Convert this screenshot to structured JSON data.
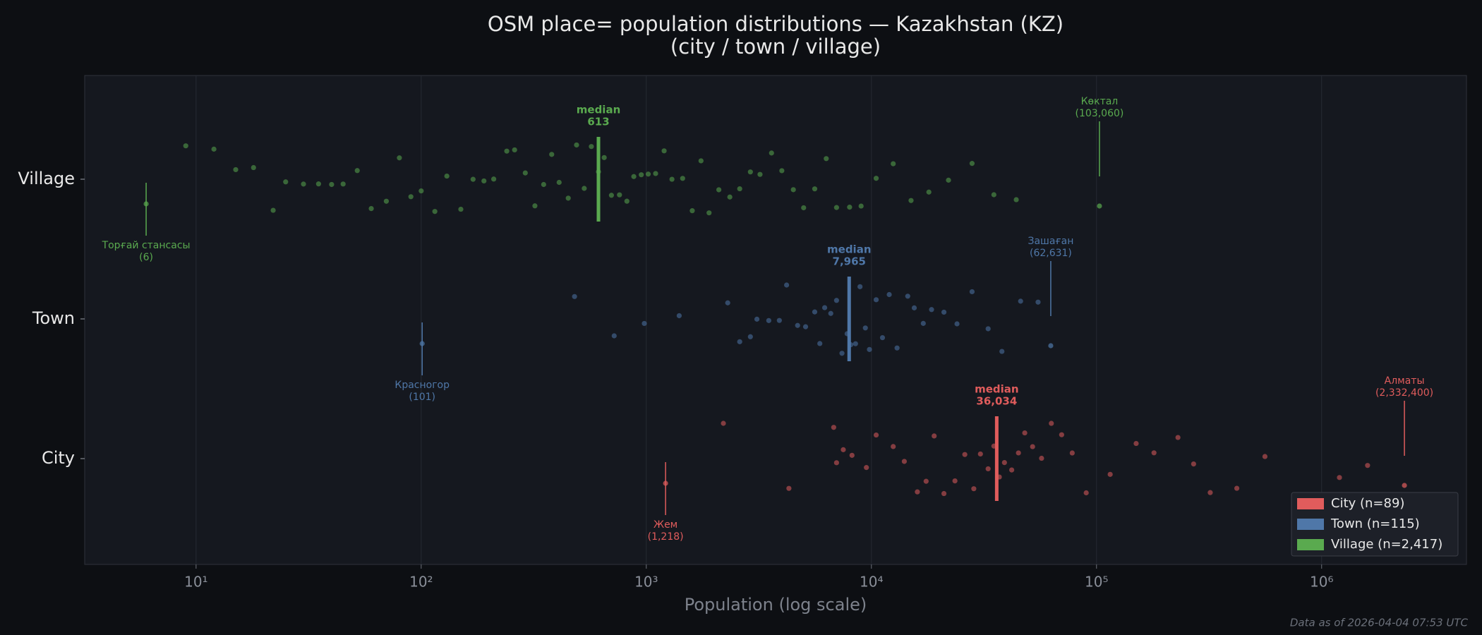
{
  "chart_data": {
    "type": "strip",
    "title": "OSM place= population distributions — Kazakhstan (KZ)",
    "subtitle": "(city / town / village)",
    "xlabel": "Population (log scale)",
    "footer": "Data as of 2026-04-04 07:53 UTC",
    "log_x": true,
    "grid": true,
    "legend": "lower right",
    "categories": [
      "Village",
      "Town",
      "City"
    ],
    "xlim": [
      3.2,
      4400000
    ],
    "xticks": [
      {
        "value": 10,
        "label": "10¹"
      },
      {
        "value": 100,
        "label": "10²"
      },
      {
        "value": 1000,
        "label": "10³"
      },
      {
        "value": 10000,
        "label": "10⁴"
      },
      {
        "value": 100000,
        "label": "10⁵"
      },
      {
        "value": 1000000,
        "label": "10⁶"
      }
    ],
    "series": [
      {
        "name": "City  (n=89)",
        "color": "#e05c5c",
        "values": [
          2200,
          4300,
          6800,
          7000,
          7500,
          8200,
          9500,
          10500,
          12500,
          14000,
          16000,
          17500,
          19000,
          21000,
          23500,
          26000,
          28500,
          30500,
          33000,
          35000,
          37000,
          39000,
          42000,
          45000,
          48000,
          52000,
          57000,
          63000,
          70000,
          78000,
          90000,
          115000,
          150000,
          180000,
          230000,
          270000,
          320000,
          420000,
          560000,
          1200000,
          1600000
        ],
        "median": {
          "label": "median",
          "value": 36034,
          "value_label": "36,034"
        },
        "min": {
          "name": "Жем",
          "value": 1218,
          "value_label": "(1,218)"
        },
        "max": {
          "name": "Алматы",
          "value": 2332400,
          "value_label": "(2,332,400)"
        }
      },
      {
        "name": "Town  (n=115)",
        "color": "#4f77a8",
        "values": [
          480,
          720,
          980,
          1400,
          2300,
          2600,
          2900,
          3100,
          3500,
          3900,
          4200,
          4700,
          5100,
          5600,
          5900,
          6200,
          6600,
          7000,
          7400,
          7800,
          8100,
          8500,
          8900,
          9400,
          9800,
          10500,
          11200,
          12000,
          13000,
          14500,
          15500,
          17000,
          18500,
          21000,
          24000,
          28000,
          33000,
          38000,
          46000,
          55000
        ],
        "median": {
          "label": "median",
          "value": 7965,
          "value_label": "7,965"
        },
        "min": {
          "name": "Красногор",
          "value": 101,
          "value_label": "(101)"
        },
        "max": {
          "name": "Зашаған",
          "value": 62631,
          "value_label": "(62,631)"
        }
      },
      {
        "name": "Village  (n=2,417)",
        "color": "#5aaa4f",
        "values": [
          9,
          12,
          15,
          18,
          22,
          25,
          30,
          35,
          40,
          45,
          52,
          60,
          70,
          80,
          90,
          100,
          115,
          130,
          150,
          170,
          190,
          210,
          240,
          260,
          290,
          320,
          350,
          380,
          410,
          450,
          490,
          530,
          570,
          613,
          650,
          700,
          760,
          820,
          880,
          950,
          1020,
          1100,
          1200,
          1300,
          1450,
          1600,
          1750,
          1900,
          2100,
          2350,
          2600,
          2900,
          3200,
          3600,
          4000,
          4500,
          5000,
          5600,
          6300,
          7000,
          8000,
          9000,
          10500,
          12500,
          15000,
          18000,
          22000,
          28000,
          35000,
          44000
        ],
        "median": {
          "label": "median",
          "value": 613,
          "value_label": "613"
        },
        "min": {
          "name": "Торғай станcасы",
          "value": 6,
          "value_label": "(6)"
        },
        "max": {
          "name": "Көктал",
          "value": 103060,
          "value_label": "(103,060)"
        }
      }
    ]
  }
}
